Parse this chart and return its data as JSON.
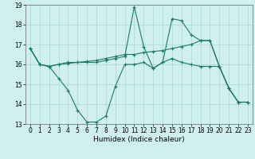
{
  "xlabel": "Humidex (Indice chaleur)",
  "x": [
    0,
    1,
    2,
    3,
    4,
    5,
    6,
    7,
    8,
    9,
    10,
    11,
    12,
    13,
    14,
    15,
    16,
    17,
    18,
    19,
    20,
    21,
    22,
    23
  ],
  "line1_zigzag": [
    16.8,
    16.0,
    15.9,
    15.3,
    14.7,
    13.7,
    13.1,
    13.1,
    13.4,
    14.9,
    16.0,
    16.0,
    16.1,
    15.8,
    16.1,
    16.3,
    16.1,
    16.0,
    15.9,
    15.9,
    15.9,
    14.8,
    14.1,
    14.1
  ],
  "line2_spike": [
    16.8,
    16.0,
    15.9,
    16.0,
    16.1,
    16.1,
    16.1,
    16.1,
    16.2,
    16.3,
    16.4,
    18.9,
    16.9,
    15.8,
    16.1,
    18.3,
    18.2,
    17.5,
    17.2,
    17.2,
    15.9,
    14.8,
    14.1,
    14.1
  ],
  "line3_trend": [
    16.8,
    16.0,
    15.9,
    16.0,
    16.05,
    16.1,
    16.15,
    16.2,
    16.3,
    16.4,
    16.5,
    16.5,
    16.6,
    16.65,
    16.7,
    16.8,
    16.9,
    17.0,
    17.2,
    17.2,
    15.9,
    14.8,
    14.1,
    14.1
  ],
  "color": "#1a7a6a",
  "bg_color": "#d0efef",
  "grid_color": "#a8d8d8",
  "ylim": [
    13,
    19
  ],
  "xlim": [
    -0.5,
    23.5
  ],
  "yticks": [
    13,
    14,
    15,
    16,
    17,
    18,
    19
  ],
  "xticks": [
    0,
    1,
    2,
    3,
    4,
    5,
    6,
    7,
    8,
    9,
    10,
    11,
    12,
    13,
    14,
    15,
    16,
    17,
    18,
    19,
    20,
    21,
    22,
    23
  ],
  "xlabel_fontsize": 6.5,
  "tick_fontsize": 5.5
}
